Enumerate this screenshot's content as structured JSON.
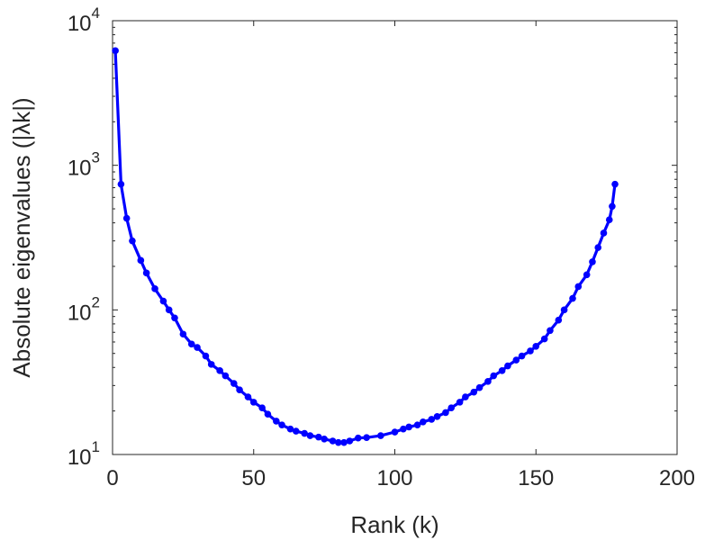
{
  "chart_data": {
    "type": "line",
    "title": "",
    "xlabel": "Rank (k)",
    "ylabel": "Absolute eigenvalues (|λk|)",
    "xlim": [
      0,
      200
    ],
    "ylim": [
      10,
      10000
    ],
    "yscale": "log",
    "grid": false,
    "legend": "none",
    "color": "#0000ff",
    "xticks": [
      0,
      50,
      100,
      150,
      200
    ],
    "xtick_labels": [
      "0",
      "50",
      "100",
      "150",
      "200"
    ],
    "yticks": [
      10,
      100,
      1000,
      10000
    ],
    "ytick_labels": [
      {
        "base": "10",
        "exp": "1"
      },
      {
        "base": "10",
        "exp": "2"
      },
      {
        "base": "10",
        "exp": "3"
      },
      {
        "base": "10",
        "exp": "4"
      }
    ],
    "x": [
      1,
      3,
      5,
      7,
      10,
      12,
      15,
      18,
      20,
      22,
      25,
      28,
      30,
      33,
      35,
      38,
      40,
      43,
      45,
      48,
      50,
      53,
      55,
      58,
      60,
      63,
      65,
      68,
      70,
      73,
      75,
      78,
      80,
      82,
      84,
      87,
      90,
      95,
      100,
      103,
      105,
      108,
      110,
      113,
      115,
      118,
      120,
      123,
      125,
      128,
      130,
      133,
      135,
      138,
      140,
      143,
      145,
      148,
      150,
      153,
      155,
      158,
      160,
      163,
      165,
      168,
      170,
      172,
      174,
      176,
      177,
      178
    ],
    "y": [
      6200,
      740,
      430,
      300,
      220,
      180,
      140,
      115,
      100,
      88,
      68,
      58,
      55,
      48,
      42,
      38,
      35,
      31,
      28,
      25,
      23,
      21,
      19,
      17,
      16,
      15,
      14.5,
      14,
      13.5,
      13.2,
      12.8,
      12.4,
      12.1,
      12.1,
      12.4,
      13,
      13.1,
      13.5,
      14.3,
      15,
      15.5,
      16,
      16.8,
      17.5,
      18.3,
      19.5,
      21,
      23,
      25,
      27,
      29,
      32,
      35,
      38,
      41,
      45,
      48,
      52,
      56,
      63,
      72,
      85,
      100,
      120,
      145,
      175,
      215,
      270,
      340,
      420,
      520,
      740
    ]
  }
}
